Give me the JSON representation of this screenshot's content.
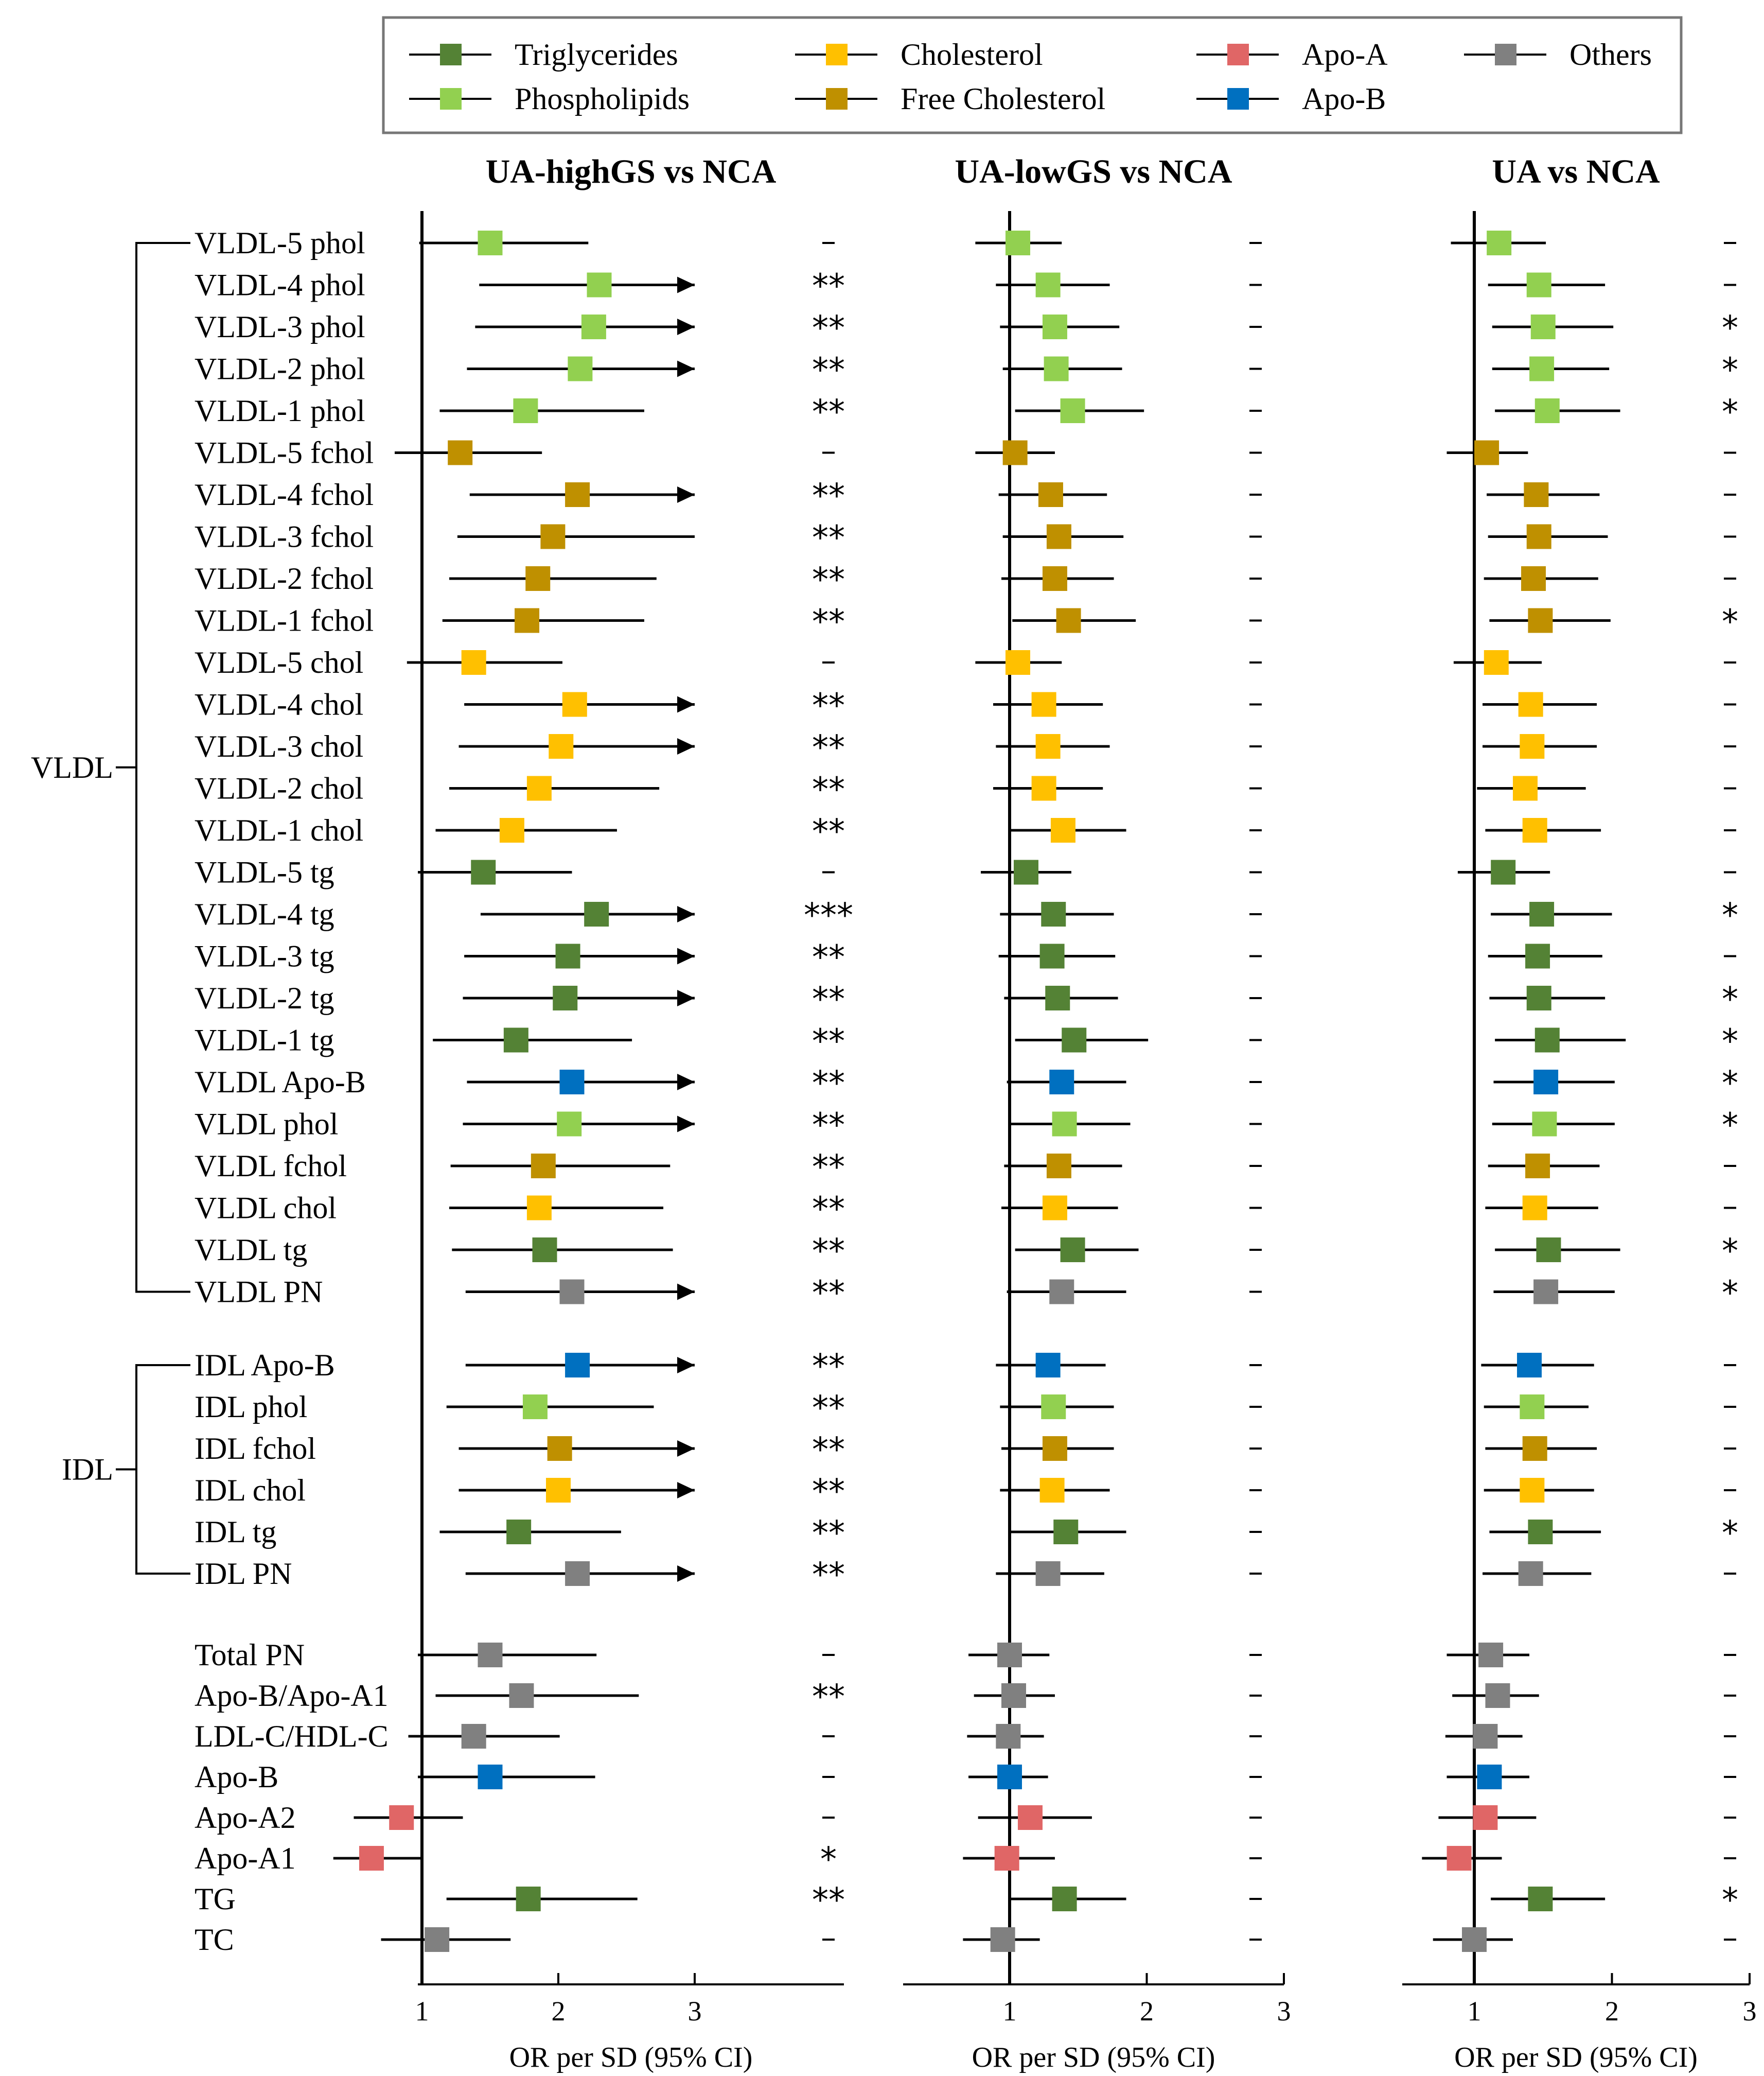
{
  "legend": [
    {
      "name": "Triglycerides",
      "color": "#548235"
    },
    {
      "name": "Phospholipids",
      "color": "#92d050"
    },
    {
      "name": "Cholesterol",
      "color": "#ffc000"
    },
    {
      "name": "Free Cholesterol",
      "color": "#bf9000"
    },
    {
      "name": "Apo-A",
      "color": "#e06666"
    },
    {
      "name": "Apo-B",
      "color": "#0070c0"
    },
    {
      "name": "Others",
      "color": "#808080"
    }
  ],
  "groups": [
    {
      "label": "VLDL",
      "first": 0,
      "last": 25
    },
    {
      "label": "IDL",
      "first": 26,
      "last": 31
    }
  ],
  "chart_data": {
    "type": "forest",
    "xlabel": "OR per SD (95% CI)",
    "xlim": [
      0.2,
      3.3
    ],
    "xticks": [
      1,
      2,
      3
    ],
    "reference_line": 1,
    "rows": [
      {
        "label": "VLDL-5 phol",
        "cat": "Phospholipids"
      },
      {
        "label": "VLDL-4 phol",
        "cat": "Phospholipids"
      },
      {
        "label": "VLDL-3 phol",
        "cat": "Phospholipids"
      },
      {
        "label": "VLDL-2 phol",
        "cat": "Phospholipids"
      },
      {
        "label": "VLDL-1 phol",
        "cat": "Phospholipids"
      },
      {
        "label": "VLDL-5 fchol",
        "cat": "Free Cholesterol"
      },
      {
        "label": "VLDL-4 fchol",
        "cat": "Free Cholesterol"
      },
      {
        "label": "VLDL-3 fchol",
        "cat": "Free Cholesterol"
      },
      {
        "label": "VLDL-2 fchol",
        "cat": "Free Cholesterol"
      },
      {
        "label": "VLDL-1 fchol",
        "cat": "Free Cholesterol"
      },
      {
        "label": "VLDL-5 chol",
        "cat": "Cholesterol"
      },
      {
        "label": "VLDL-4 chol",
        "cat": "Cholesterol"
      },
      {
        "label": "VLDL-3 chol",
        "cat": "Cholesterol"
      },
      {
        "label": "VLDL-2 chol",
        "cat": "Cholesterol"
      },
      {
        "label": "VLDL-1 chol",
        "cat": "Cholesterol"
      },
      {
        "label": "VLDL-5 tg",
        "cat": "Triglycerides"
      },
      {
        "label": "VLDL-4 tg",
        "cat": "Triglycerides"
      },
      {
        "label": "VLDL-3 tg",
        "cat": "Triglycerides"
      },
      {
        "label": "VLDL-2 tg",
        "cat": "Triglycerides"
      },
      {
        "label": "VLDL-1 tg",
        "cat": "Triglycerides"
      },
      {
        "label": "VLDL Apo-B",
        "cat": "Apo-B"
      },
      {
        "label": "VLDL phol",
        "cat": "Phospholipids"
      },
      {
        "label": "VLDL fchol",
        "cat": "Free Cholesterol"
      },
      {
        "label": "VLDL chol",
        "cat": "Cholesterol"
      },
      {
        "label": "VLDL tg",
        "cat": "Triglycerides"
      },
      {
        "label": "VLDL PN",
        "cat": "Others"
      },
      {
        "label": "IDL Apo-B",
        "cat": "Apo-B"
      },
      {
        "label": "IDL phol",
        "cat": "Phospholipids"
      },
      {
        "label": "IDL fchol",
        "cat": "Free Cholesterol"
      },
      {
        "label": "IDL chol",
        "cat": "Cholesterol"
      },
      {
        "label": "IDL tg",
        "cat": "Triglycerides"
      },
      {
        "label": "IDL PN",
        "cat": "Others"
      },
      {
        "label": "Total PN",
        "cat": "Others"
      },
      {
        "label": "Apo-B/Apo-A1",
        "cat": "Others"
      },
      {
        "label": "LDL-C/HDL-C",
        "cat": "Others"
      },
      {
        "label": "Apo-B",
        "cat": "Apo-B"
      },
      {
        "label": "Apo-A2",
        "cat": "Apo-A"
      },
      {
        "label": "Apo-A1",
        "cat": "Apo-A"
      },
      {
        "label": "TG",
        "cat": "Triglycerides"
      },
      {
        "label": "TC",
        "cat": "Others"
      }
    ],
    "panels": [
      {
        "title": "UA-highGS vs NCA",
        "or": [
          1.5,
          2.3,
          2.26,
          2.16,
          1.76,
          1.28,
          2.14,
          1.96,
          1.85,
          1.77,
          1.38,
          2.12,
          2.02,
          1.86,
          1.66,
          1.45,
          2.28,
          2.07,
          2.05,
          1.69,
          2.1,
          2.08,
          1.89,
          1.86,
          1.9,
          2.1,
          2.14,
          1.83,
          2.01,
          2.0,
          1.71,
          2.14,
          1.5,
          1.73,
          1.38,
          1.5,
          0.85,
          0.63,
          1.78,
          1.11
        ],
        "lo": [
          0.98,
          1.42,
          1.39,
          1.33,
          1.13,
          0.8,
          1.35,
          1.26,
          1.2,
          1.15,
          0.89,
          1.31,
          1.27,
          1.2,
          1.1,
          0.97,
          1.43,
          1.31,
          1.3,
          1.08,
          1.33,
          1.3,
          1.21,
          1.2,
          1.22,
          1.32,
          1.32,
          1.18,
          1.27,
          1.27,
          1.13,
          1.32,
          0.97,
          1.1,
          0.9,
          0.97,
          0.5,
          0.35,
          1.18,
          0.7
        ],
        "hi": [
          2.22,
          3.0,
          3.0,
          3.0,
          2.63,
          1.88,
          3.0,
          3.0,
          2.72,
          2.63,
          2.03,
          3.0,
          3.0,
          2.74,
          2.43,
          2.1,
          3.0,
          3.0,
          3.0,
          2.54,
          3.0,
          3.0,
          2.82,
          2.77,
          2.84,
          3.0,
          3.0,
          2.7,
          3.0,
          3.0,
          2.46,
          3.0,
          2.28,
          2.59,
          2.01,
          2.27,
          1.3,
          1.0,
          2.58,
          1.65
        ],
        "arrow": [
          false,
          true,
          true,
          true,
          false,
          false,
          true,
          false,
          false,
          false,
          false,
          true,
          true,
          false,
          false,
          false,
          true,
          true,
          true,
          false,
          true,
          true,
          false,
          false,
          false,
          true,
          true,
          false,
          true,
          true,
          false,
          true,
          false,
          false,
          false,
          false,
          false,
          false,
          false,
          false
        ],
        "sig": [
          "-",
          "**",
          "**",
          "**",
          "**",
          "-",
          "**",
          "**",
          "**",
          "**",
          "-",
          "**",
          "**",
          "**",
          "**",
          "-",
          "***",
          "**",
          "**",
          "**",
          "**",
          "**",
          "**",
          "**",
          "**",
          "**",
          "**",
          "**",
          "**",
          "**",
          "**",
          "**",
          "-",
          "**",
          "-",
          "-",
          "-",
          "*",
          "**",
          "-"
        ]
      },
      {
        "title": "UA-lowGS vs NCA",
        "or": [
          1.06,
          1.28,
          1.33,
          1.34,
          1.46,
          1.04,
          1.3,
          1.36,
          1.33,
          1.43,
          1.06,
          1.25,
          1.28,
          1.25,
          1.39,
          1.12,
          1.32,
          1.31,
          1.35,
          1.47,
          1.38,
          1.4,
          1.36,
          1.33,
          1.46,
          1.38,
          1.28,
          1.32,
          1.33,
          1.31,
          1.41,
          1.28,
          1.0,
          1.03,
          0.99,
          1.0,
          1.15,
          0.98,
          1.4,
          0.95
        ],
        "lo": [
          0.75,
          0.9,
          0.93,
          0.95,
          1.04,
          0.75,
          0.92,
          0.95,
          0.94,
          1.02,
          0.75,
          0.88,
          0.9,
          0.88,
          0.99,
          0.79,
          0.93,
          0.92,
          0.96,
          1.04,
          0.98,
          0.99,
          0.96,
          0.94,
          1.04,
          0.98,
          0.9,
          0.93,
          0.94,
          0.93,
          1.0,
          0.9,
          0.7,
          0.74,
          0.69,
          0.7,
          0.77,
          0.66,
          0.99,
          0.66
        ],
        "hi": [
          1.38,
          1.73,
          1.8,
          1.82,
          1.98,
          1.33,
          1.71,
          1.83,
          1.76,
          1.92,
          1.38,
          1.68,
          1.73,
          1.68,
          1.85,
          1.45,
          1.76,
          1.77,
          1.79,
          2.01,
          1.85,
          1.88,
          1.82,
          1.79,
          1.94,
          1.85,
          1.7,
          1.76,
          1.76,
          1.73,
          1.85,
          1.69,
          1.29,
          1.33,
          1.25,
          1.28,
          1.6,
          1.33,
          1.85,
          1.22
        ],
        "arrow": [
          false,
          false,
          false,
          false,
          false,
          false,
          false,
          false,
          false,
          false,
          false,
          false,
          false,
          false,
          false,
          false,
          false,
          false,
          false,
          false,
          false,
          false,
          false,
          false,
          false,
          false,
          false,
          false,
          false,
          false,
          false,
          false,
          false,
          false,
          false,
          false,
          false,
          false,
          false,
          false
        ],
        "sig": [
          "-",
          "-",
          "-",
          "-",
          "-",
          "-",
          "-",
          "-",
          "-",
          "-",
          "-",
          "-",
          "-",
          "-",
          "-",
          "-",
          "-",
          "-",
          "-",
          "-",
          "-",
          "-",
          "-",
          "-",
          "-",
          "-",
          "-",
          "-",
          "-",
          "-",
          "-",
          "-",
          "-",
          "-",
          "-",
          "-",
          "-",
          "-",
          "-",
          "-"
        ]
      },
      {
        "title": "UA vs NCA",
        "or": [
          1.18,
          1.47,
          1.5,
          1.49,
          1.53,
          1.09,
          1.45,
          1.47,
          1.43,
          1.48,
          1.16,
          1.41,
          1.42,
          1.37,
          1.44,
          1.21,
          1.49,
          1.46,
          1.47,
          1.53,
          1.52,
          1.51,
          1.46,
          1.44,
          1.54,
          1.52,
          1.4,
          1.42,
          1.44,
          1.42,
          1.48,
          1.41,
          1.12,
          1.17,
          1.08,
          1.11,
          1.08,
          0.89,
          1.48,
          1.0
        ],
        "lo": [
          0.83,
          1.1,
          1.13,
          1.13,
          1.15,
          0.8,
          1.09,
          1.1,
          1.07,
          1.11,
          0.85,
          1.06,
          1.06,
          1.02,
          1.08,
          0.88,
          1.12,
          1.1,
          1.11,
          1.15,
          1.14,
          1.13,
          1.1,
          1.08,
          1.15,
          1.14,
          1.05,
          1.07,
          1.08,
          1.07,
          1.11,
          1.06,
          0.8,
          0.84,
          0.79,
          0.8,
          0.74,
          0.62,
          1.12,
          0.7
        ],
        "hi": [
          1.52,
          1.95,
          2.01,
          1.98,
          2.06,
          1.39,
          1.91,
          1.97,
          1.9,
          1.99,
          1.49,
          1.89,
          1.89,
          1.81,
          1.92,
          1.55,
          2.0,
          1.93,
          1.95,
          2.1,
          2.02,
          2.02,
          1.91,
          1.9,
          2.06,
          2.02,
          1.87,
          1.83,
          1.89,
          1.87,
          1.92,
          1.85,
          1.4,
          1.47,
          1.35,
          1.4,
          1.45,
          1.2,
          1.95,
          1.28
        ],
        "arrow": [
          false,
          false,
          false,
          false,
          false,
          false,
          false,
          false,
          false,
          false,
          false,
          false,
          false,
          false,
          false,
          false,
          false,
          false,
          false,
          false,
          false,
          false,
          false,
          false,
          false,
          false,
          false,
          false,
          false,
          false,
          false,
          false,
          false,
          false,
          false,
          false,
          false,
          false,
          false,
          false
        ],
        "sig": [
          "-",
          "-",
          "*",
          "*",
          "*",
          "-",
          "-",
          "-",
          "-",
          "*",
          "-",
          "-",
          "-",
          "-",
          "-",
          "-",
          "*",
          "-",
          "*",
          "*",
          "*",
          "*",
          "-",
          "-",
          "*",
          "*",
          "-",
          "-",
          "-",
          "-",
          "*",
          "-",
          "-",
          "-",
          "-",
          "-",
          "-",
          "-",
          "*",
          "-"
        ]
      }
    ]
  }
}
